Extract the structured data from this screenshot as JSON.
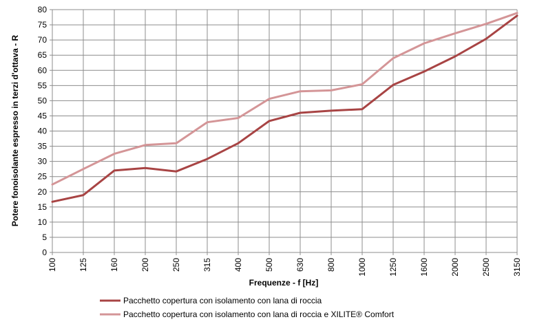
{
  "chart_data": {
    "type": "line",
    "title": "",
    "xlabel": "Frequenze - f [Hz]",
    "ylabel": "Potere fonoisolante espresso in terzi d'ottava - R",
    "categories": [
      "100",
      "125",
      "160",
      "200",
      "250",
      "315",
      "400",
      "500",
      "630",
      "800",
      "1000",
      "1250",
      "1600",
      "2000",
      "2500",
      "3150"
    ],
    "ylim": [
      0,
      80
    ],
    "yticks": [
      0,
      5,
      10,
      15,
      20,
      25,
      30,
      35,
      40,
      45,
      50,
      55,
      60,
      65,
      70,
      75,
      80
    ],
    "grid": true,
    "legend_position": "bottom",
    "series": [
      {
        "name": "Pacchetto copertura con isolamento con lana di roccia",
        "color": "#a84444",
        "values": [
          16.7,
          18.9,
          27.0,
          27.8,
          26.7,
          30.8,
          36.0,
          43.3,
          46.0,
          46.7,
          47.2,
          55.2,
          59.6,
          64.6,
          70.4,
          78.0
        ]
      },
      {
        "name": "Pacchetto copertura con isolamento con lana di roccia e XILITE® Comfort",
        "color": "#d49597",
        "values": [
          22.4,
          27.5,
          32.5,
          35.4,
          36.0,
          42.9,
          44.3,
          50.6,
          53.1,
          53.4,
          55.4,
          64.0,
          68.9,
          72.2,
          75.3,
          78.9
        ]
      }
    ]
  }
}
